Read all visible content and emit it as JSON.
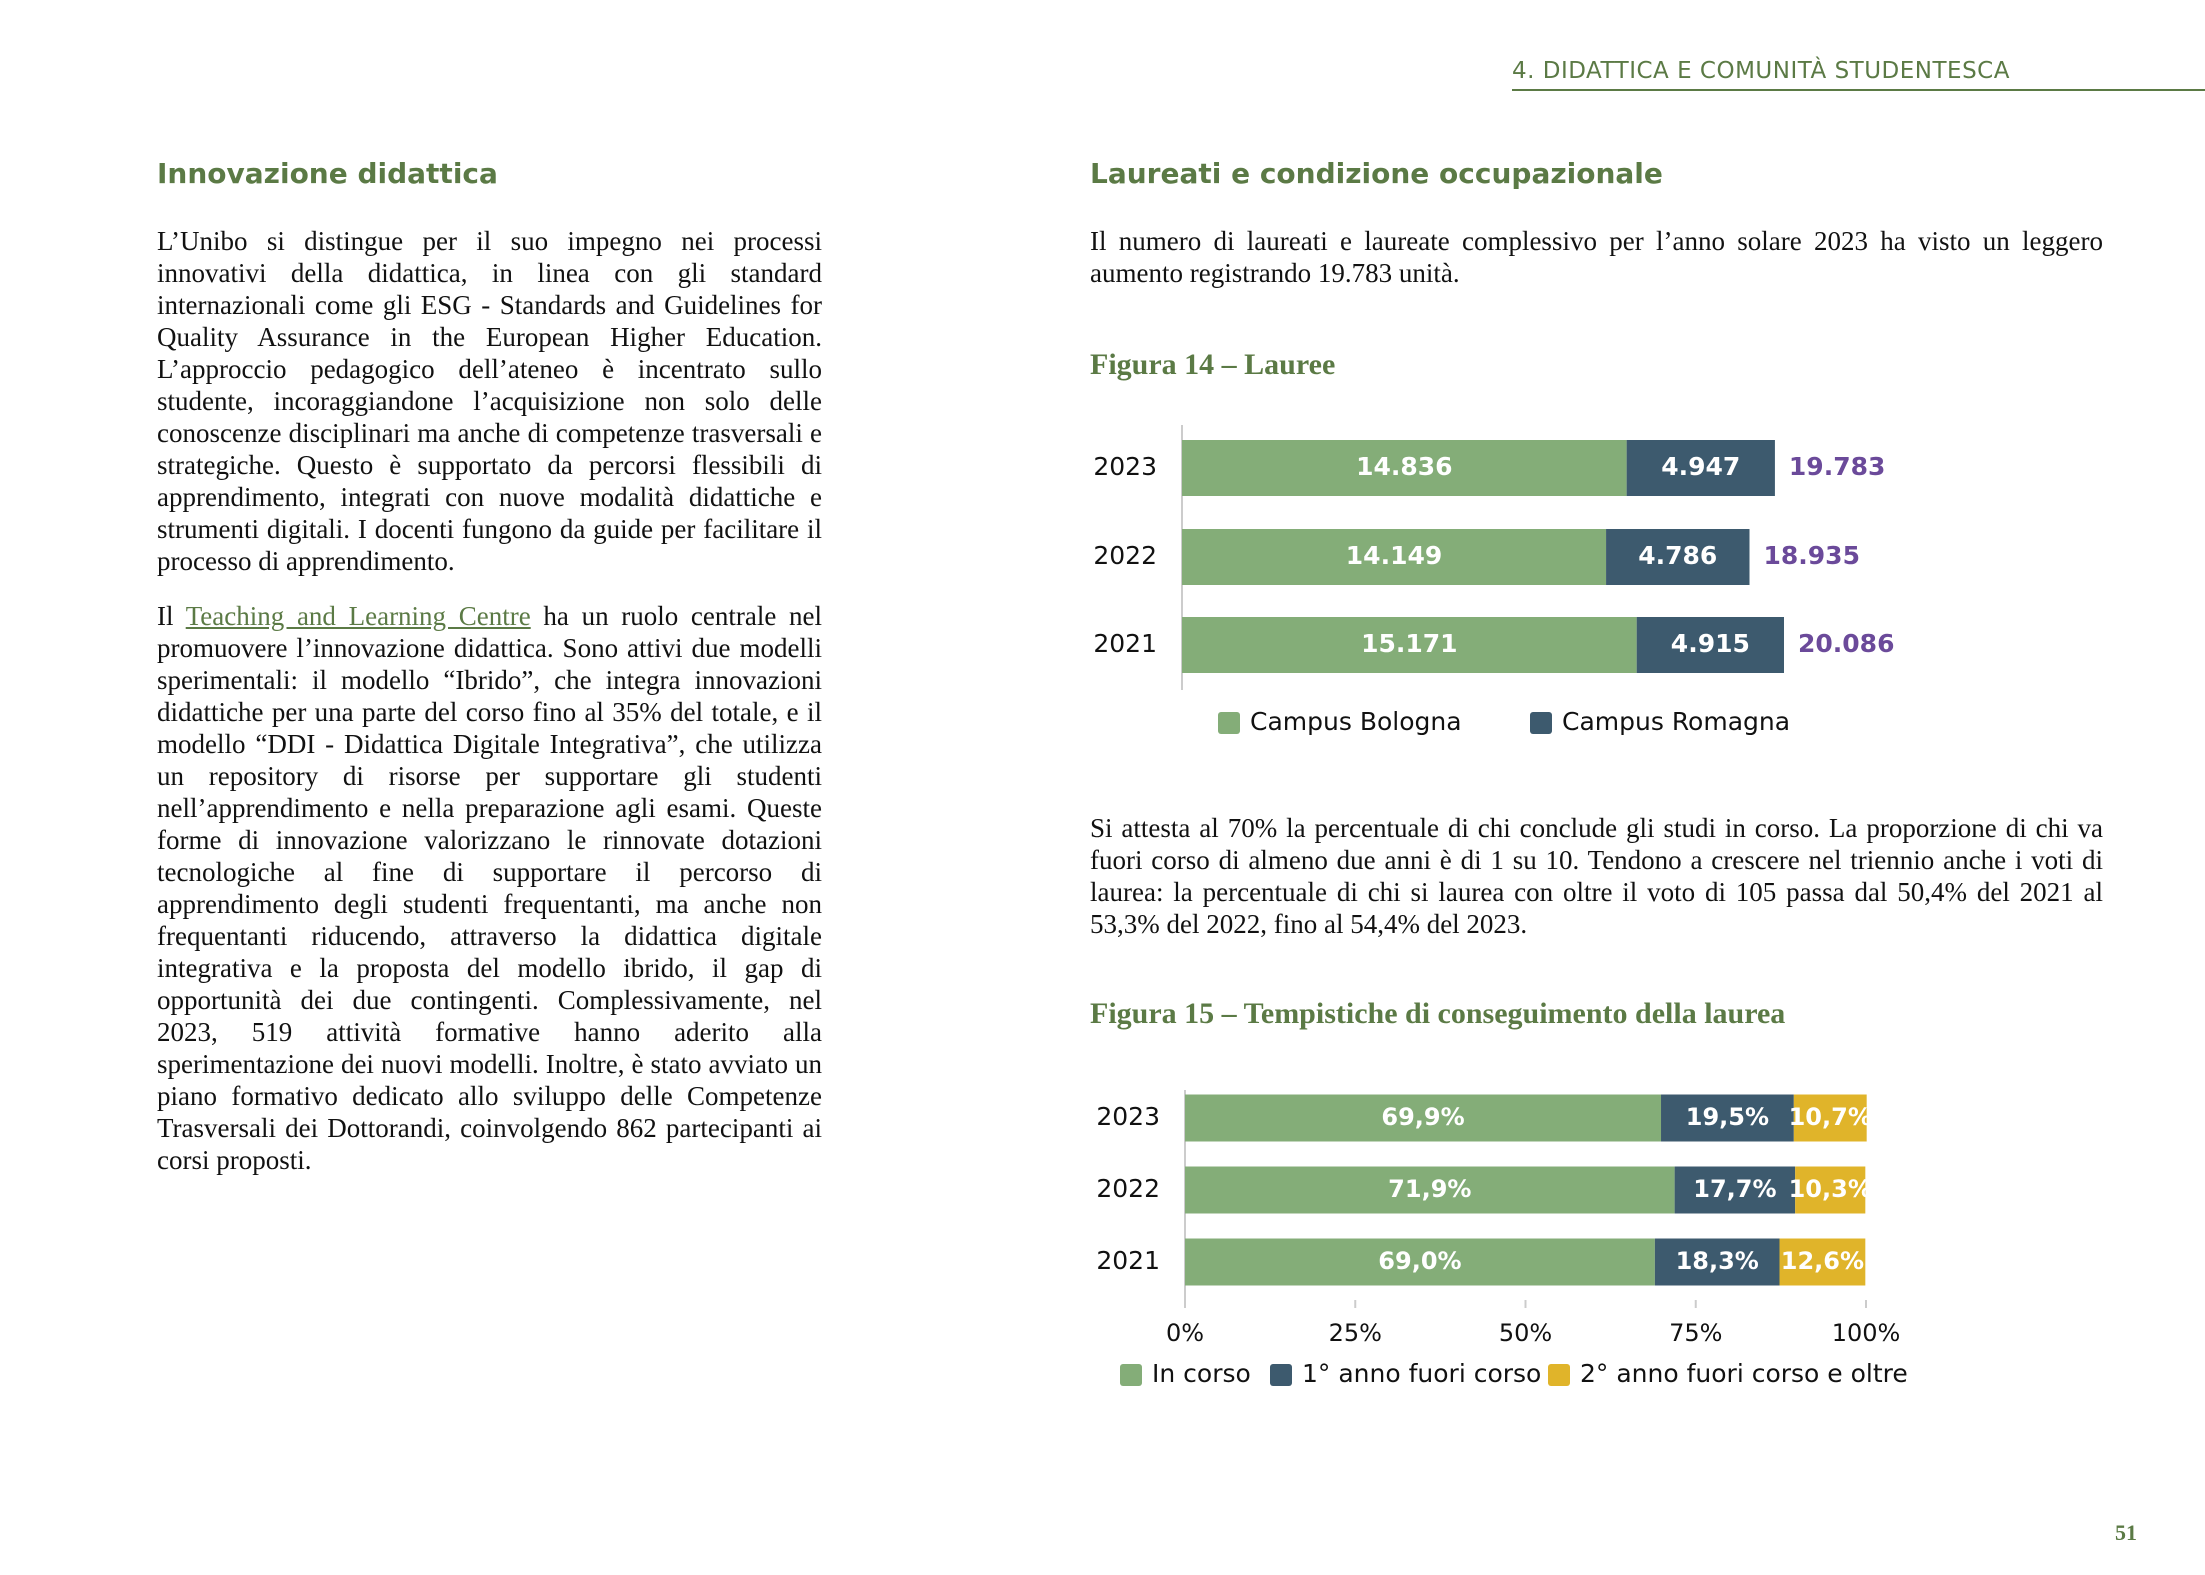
{
  "header": {
    "section": "4. DIDATTICA E COMUNITÀ STUDENTESCA"
  },
  "left": {
    "heading": "Innovazione didattica",
    "paragraph_1": "L’Unibo si distingue per il suo impegno nei processi innovativi della didattica, in linea con gli standard internazionali come gli ESG - Standards and Guidelines for Quality Assurance in the European Higher Education. L’approccio pedagogico dell’ateneo è incentrato sullo studente, incoraggiandone l’acquisizione non solo delle conoscenze disciplinari ma anche di competenze trasversali e strategiche. Questo è supportato da percorsi flessibili di apprendimento, integrati con nuove modalità didattiche e strumenti digitali. I docenti fungono da guide per facilitare il processo di apprendimento.",
    "paragraph_2": {
      "before": "Il",
      "link": "Teaching and Learning Centre",
      "after": "ha un ruolo centrale nel promuovere l’innovazione didattica. Sono attivi due modelli sperimentali: il modello “Ibrido”, che integra innovazioni didattiche per una parte del corso fino al 35% del totale, e il modello “DDI - Didattica Digitale Integrativa”, che utilizza un repository di risorse per supportare gli studenti nell’apprendimento e nella preparazione agli esami. Queste forme di innovazione valorizzano le rinnovate dotazioni tecnologiche al fine di supportare il percorso di apprendimento degli studenti frequentanti, ma anche non frequentanti riducendo, attraverso la didattica digitale integrativa e la proposta del modello ibrido, il gap di opportunità dei due contingenti. Complessivamente, nel 2023, 519 attività formative hanno aderito alla sperimentazione dei nuovi modelli. Inoltre, è stato avviato un piano formativo dedicato allo sviluppo delle Competenze Trasversali dei Dottorandi, coinvolgendo 862 partecipanti ai corsi proposti."
    }
  },
  "right": {
    "heading": "Laureati e condizione occupazionale",
    "intro": "Il numero di laureati e laureate complessivo per l’anno solare 2023 ha visto un leggero aumento registrando 19.783 unità.",
    "figure_14": {
      "title": "Figura 14 – Lauree",
      "chart": {
        "type": "bar",
        "orientation": "horizontal",
        "stacked": true,
        "categories": [
          "2023",
          "2022",
          "2021"
        ],
        "series": [
          {
            "name": "Campus Bologna",
            "color": "#84ad78",
            "values": [
              14836,
              14149,
              15171
            ],
            "value_labels": [
              "14.836",
              "14.149",
              "15.171"
            ]
          },
          {
            "name": "Campus Romagna",
            "color": "#3d5a6e",
            "values": [
              4947,
              4786,
              4915
            ],
            "value_labels": [
              "4.947",
              "4.786",
              "4.915"
            ]
          }
        ],
        "totals": {
          "color": "#6b4a9a",
          "values": [
            19783,
            18935,
            20086
          ],
          "value_labels": [
            "19.783",
            "18.935",
            "20.086"
          ]
        }
      }
    },
    "text": "Si attesta al 70% la percentuale di chi conclude gli studi in corso. La proporzione di chi va fuori corso di almeno due anni è di 1 su 10. Tendono a crescere nel triennio anche i voti di laurea: la percentuale di chi si laurea con oltre il voto di 105 passa dal 50,4% del 2021 al 53,3% del 2022, fino al 54,4% del 2023.",
    "figure_15": {
      "title": "Figura 15 – Tempistiche di conseguimento della laurea",
      "chart": {
        "type": "bar",
        "orientation": "horizontal",
        "stacked": true,
        "categories": [
          "2023",
          "2022",
          "2021"
        ],
        "series": [
          {
            "name": "In corso",
            "color": "#84ad78",
            "values": [
              69.9,
              71.9,
              69.0
            ],
            "value_labels": [
              "69,9%",
              "71,9%",
              "69,0%"
            ]
          },
          {
            "name": "1° anno fuori corso",
            "color": "#3d5a6e",
            "values": [
              19.5,
              17.7,
              18.3
            ],
            "value_labels": [
              "19,5%",
              "17,7%",
              "18,3%"
            ]
          },
          {
            "name": "2° anno fuori corso e oltre",
            "color": "#e0b42a",
            "values": [
              10.7,
              10.3,
              12.6
            ],
            "value_labels": [
              "10,7%",
              "10,3%",
              "12,6%"
            ]
          }
        ],
        "xlim": [
          0,
          100
        ],
        "xticks": [
          {
            "value": 0,
            "label": "0%"
          },
          {
            "value": 25,
            "label": "25%"
          },
          {
            "value": 50,
            "label": "50%"
          },
          {
            "value": 75,
            "label": "75%"
          },
          {
            "value": 100,
            "label": "100%"
          }
        ]
      }
    }
  },
  "page_number": "51"
}
